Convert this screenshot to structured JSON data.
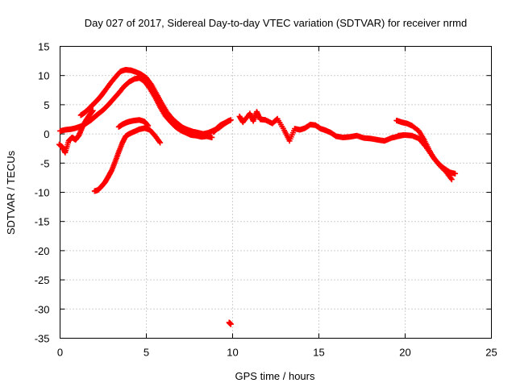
{
  "chart_data": {
    "type": "scatter",
    "title": "Day 027 of 2017, Sidereal Day-to-day VTEC variation (SDTVAR) for receiver nrmd",
    "xlabel": "GPS time / hours",
    "ylabel": "SDTVAR / TECUs",
    "xlim": [
      0,
      25
    ],
    "ylim": [
      -35,
      15
    ],
    "xticks": [
      0,
      5,
      10,
      15,
      20,
      25
    ],
    "yticks": [
      15,
      10,
      5,
      0,
      -5,
      -10,
      -15,
      -20,
      -25,
      -30,
      -35
    ],
    "grid": true,
    "marker": "plus",
    "color": "#ff0000",
    "series": [
      {
        "name": "track-1",
        "x": [
          -0.05,
          0.15,
          0.3,
          0.5,
          0.7,
          0.9,
          1.1,
          1.3,
          1.5,
          1.7,
          1.9
        ],
        "y": [
          -1.8,
          -2.3,
          -3.2,
          -1.2,
          -0.6,
          -1.0,
          -0.2,
          1.2,
          2.3,
          3.2,
          4.0
        ]
      },
      {
        "name": "track-2",
        "x": [
          0.0,
          0.3,
          0.6,
          0.9,
          1.2,
          1.4,
          1.6,
          1.8,
          2.0,
          2.2,
          2.5,
          2.8,
          3.1,
          3.4,
          3.7,
          4.0,
          4.3,
          4.6,
          4.9,
          5.2,
          5.5,
          5.8,
          6.1,
          6.4,
          6.7,
          7.0,
          7.3,
          7.6,
          7.9,
          8.2,
          8.5,
          8.8
        ],
        "y": [
          0.5,
          0.7,
          0.8,
          1.0,
          1.3,
          1.6,
          2.0,
          2.4,
          2.9,
          3.4,
          4.1,
          5.0,
          6.0,
          7.0,
          8.1,
          8.9,
          9.4,
          9.6,
          9.0,
          7.8,
          6.3,
          4.6,
          3.1,
          2.1,
          1.2,
          0.6,
          0.2,
          -0.2,
          -0.3,
          -0.5,
          -0.4,
          -0.6
        ]
      },
      {
        "name": "track-3",
        "x": [
          1.2,
          1.4,
          1.6,
          1.8,
          2.0,
          2.2,
          2.4,
          2.6,
          2.9,
          3.2,
          3.5,
          3.8,
          4.1,
          4.4,
          4.7,
          5.0,
          5.3,
          5.6,
          5.9,
          6.2,
          6.5,
          6.8,
          7.1,
          7.4,
          7.7,
          8.0,
          8.3,
          8.6,
          8.9,
          9.2,
          9.5,
          9.8
        ],
        "y": [
          3.2,
          3.6,
          4.1,
          4.7,
          5.3,
          5.9,
          6.6,
          7.4,
          8.6,
          9.7,
          10.7,
          11.0,
          10.9,
          10.6,
          10.2,
          9.6,
          8.4,
          6.8,
          5.2,
          3.7,
          2.6,
          1.8,
          1.1,
          0.7,
          0.4,
          0.2,
          0.0,
          0.2,
          0.6,
          1.0,
          1.7,
          2.3
        ]
      },
      {
        "name": "track-4",
        "x": [
          2.0,
          2.2,
          2.4,
          2.6,
          2.8,
          3.0,
          3.2,
          3.4,
          3.6,
          3.8,
          4.0,
          4.3,
          4.6,
          4.9,
          5.2,
          5.5,
          5.8
        ],
        "y": [
          -9.8,
          -9.6,
          -9.0,
          -8.3,
          -7.3,
          -6.2,
          -4.7,
          -3.1,
          -1.6,
          -0.4,
          0.0,
          0.4,
          0.8,
          1.0,
          0.7,
          -0.3,
          -1.5
        ]
      },
      {
        "name": "track-5",
        "x": [
          3.4,
          3.6,
          3.8,
          4.0,
          4.3,
          4.6,
          4.9,
          5.1
        ],
        "y": [
          1.2,
          1.6,
          1.9,
          2.1,
          2.3,
          2.4,
          2.1,
          1.4
        ]
      },
      {
        "name": "track-6",
        "x": [
          8.9,
          9.1,
          9.3,
          9.5,
          9.7,
          9.9
        ],
        "y": [
          0.3,
          1.0,
          1.5,
          1.8,
          2.1,
          2.4
        ]
      },
      {
        "name": "track-7",
        "x": [
          10.4,
          10.6,
          11.0,
          11.2,
          11.4,
          11.6,
          11.9,
          12.3,
          12.6,
          13.0,
          13.3,
          13.6,
          13.9,
          14.2,
          14.5,
          14.8,
          15.1,
          15.4,
          15.7,
          16.0,
          16.4,
          16.8,
          17.2,
          17.6,
          18.0,
          18.4,
          18.8,
          19.2,
          19.6,
          19.9
        ],
        "y": [
          3.0,
          2.0,
          3.5,
          2.2,
          3.8,
          2.5,
          2.4,
          1.8,
          2.6,
          0.6,
          -1.2,
          0.9,
          0.7,
          1.0,
          1.6,
          1.5,
          0.9,
          0.6,
          0.2,
          -0.4,
          -0.6,
          -0.5,
          -0.3,
          -0.7,
          -0.8,
          -1.0,
          -1.2,
          -0.7,
          -0.4,
          -0.2
        ]
      },
      {
        "name": "track-8",
        "x": [
          19.5,
          19.8,
          20.1,
          20.4,
          20.8,
          21.1,
          21.4,
          21.7,
          22.0,
          22.3,
          22.6,
          22.9
        ],
        "y": [
          2.3,
          2.0,
          1.8,
          1.4,
          0.5,
          -1.0,
          -2.8,
          -4.3,
          -5.3,
          -6.0,
          -6.6,
          -6.8
        ]
      },
      {
        "name": "track-9",
        "x": [
          19.6,
          20.0,
          20.4,
          20.8,
          21.2,
          21.6,
          22.0,
          22.4,
          22.7
        ],
        "y": [
          -0.3,
          -0.2,
          -0.3,
          -0.8,
          -2.2,
          -3.9,
          -5.4,
          -6.6,
          -7.8
        ]
      },
      {
        "name": "track-10",
        "x": [
          9.8,
          9.9
        ],
        "y": [
          -32.3,
          -32.6
        ]
      }
    ]
  }
}
